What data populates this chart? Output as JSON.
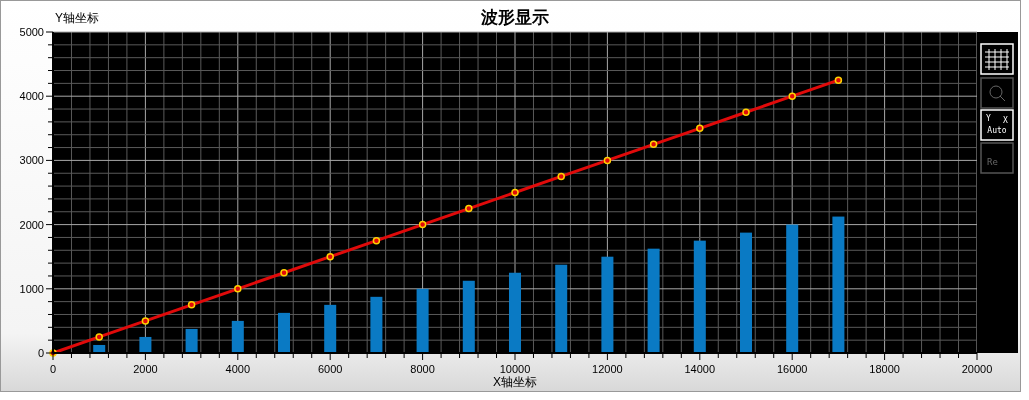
{
  "chart_data": {
    "type": "line",
    "title": "波形显示",
    "xlabel": "X轴坐标",
    "ylabel": "Y轴坐标",
    "xlim": [
      0,
      20000
    ],
    "ylim": [
      0,
      5000
    ],
    "xticks": [
      0,
      {
        "value": 400,
        "label": null
      },
      {
        "value": 800,
        "label": null
      },
      {
        "value": 1200,
        "label": null
      },
      {
        "value": 1600,
        "label": null
      },
      2000,
      {
        "value": 2400,
        "label": null
      },
      {
        "value": 2800,
        "label": null
      },
      {
        "value": 3200,
        "label": null
      },
      {
        "value": 3600,
        "label": null
      },
      4000,
      {
        "value": 4400,
        "label": null
      },
      {
        "value": 4800,
        "label": null
      },
      {
        "value": 5200,
        "label": null
      },
      {
        "value": 5600,
        "label": null
      },
      6000,
      {
        "value": 6400,
        "label": null
      },
      {
        "value": 6800,
        "label": null
      },
      {
        "value": 7200,
        "label": null
      },
      {
        "value": 7600,
        "label": null
      },
      8000,
      {
        "value": 8400,
        "label": null
      },
      {
        "value": 8800,
        "label": null
      },
      {
        "value": 9200,
        "label": null
      },
      {
        "value": 9600,
        "label": null
      },
      10000,
      {
        "value": 10400,
        "label": null
      },
      {
        "value": 10800,
        "label": null
      },
      {
        "value": 11200,
        "label": null
      },
      {
        "value": 11600,
        "label": null
      },
      12000,
      {
        "value": 12400,
        "label": null
      },
      {
        "value": 12800,
        "label": null
      },
      {
        "value": 13200,
        "label": null
      },
      {
        "value": 13600,
        "label": null
      },
      14000,
      {
        "value": 14400,
        "label": null
      },
      {
        "value": 14800,
        "label": null
      },
      {
        "value": 15200,
        "label": null
      },
      {
        "value": 15600,
        "label": null
      },
      16000,
      {
        "value": 16400,
        "label": null
      },
      {
        "value": 16800,
        "label": null
      },
      {
        "value": 17200,
        "label": null
      },
      {
        "value": 17600,
        "label": null
      },
      18000,
      {
        "value": 18400,
        "label": null
      },
      {
        "value": 18800,
        "label": null
      },
      {
        "value": 19200,
        "label": null
      },
      {
        "value": 19600,
        "label": null
      },
      20000
    ],
    "yticks": [
      0,
      {
        "value": 200,
        "label": null
      },
      {
        "value": 400,
        "label": null
      },
      {
        "value": 600,
        "label": null
      },
      {
        "value": 800,
        "label": null
      },
      1000,
      {
        "value": 1200,
        "label": null
      },
      {
        "value": 1400,
        "label": null
      },
      {
        "value": 1600,
        "label": null
      },
      {
        "value": 1800,
        "label": null
      },
      2000,
      {
        "value": 2200,
        "label": null
      },
      {
        "value": 2400,
        "label": null
      },
      {
        "value": 2600,
        "label": null
      },
      {
        "value": 2800,
        "label": null
      },
      3000,
      {
        "value": 3200,
        "label": null
      },
      {
        "value": 3400,
        "label": null
      },
      {
        "value": 3600,
        "label": null
      },
      {
        "value": 3800,
        "label": null
      },
      4000,
      {
        "value": 4200,
        "label": null
      },
      {
        "value": 4400,
        "label": null
      },
      {
        "value": 4600,
        "label": null
      },
      {
        "value": 4800,
        "label": null
      },
      5000
    ],
    "annotations": [
      "Y",
      "X",
      "Auto",
      "Re"
    ],
    "grid": true,
    "marker": "circle",
    "line_style": "solid",
    "series": [
      {
        "type": "bar",
        "color": "#0a7ac4",
        "x": [
          1000,
          2000,
          3000,
          4000,
          5000,
          6000,
          7000,
          8000,
          9000,
          10000,
          11000,
          12000,
          13000,
          14000,
          15000,
          16000,
          17000
        ],
        "values": [
          125,
          250,
          375,
          500,
          625,
          750,
          875,
          1000,
          1125,
          1250,
          1375,
          1500,
          1625,
          1750,
          1875,
          2000,
          2125
        ]
      },
      {
        "color": "#e00a0a",
        "x": [
          0,
          1000,
          2000,
          3000,
          4000,
          5000,
          6000,
          7000,
          8000,
          9000,
          10000,
          11000,
          12000,
          13000,
          14000,
          15000,
          16000,
          17000
        ],
        "values": [
          0,
          250,
          500,
          750,
          1000,
          1250,
          1500,
          1750,
          2000,
          2250,
          2500,
          2750,
          3000,
          3250,
          3500,
          3750,
          4000,
          4250
        ]
      }
    ]
  }
}
